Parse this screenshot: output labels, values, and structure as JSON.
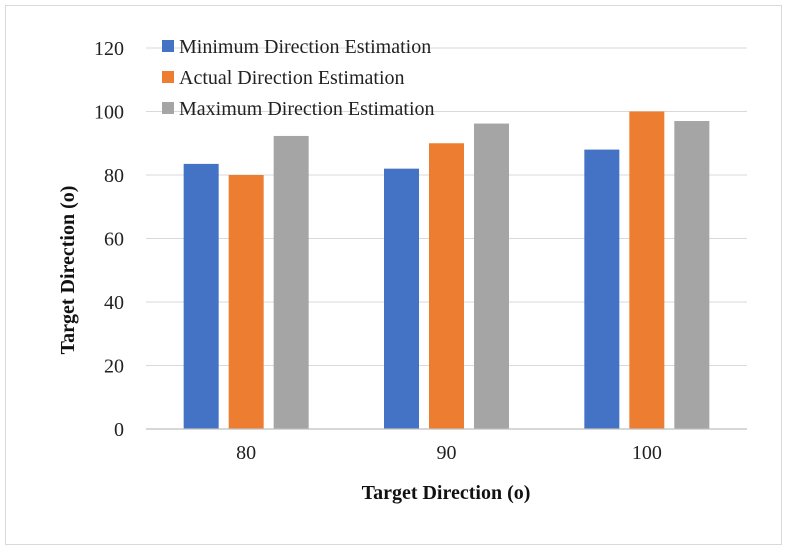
{
  "chart_data": {
    "type": "bar",
    "title": "",
    "xlabel": "Target Direction (o)",
    "ylabel": "Target Direction (o)",
    "categories": [
      "80",
      "90",
      "100"
    ],
    "series": [
      {
        "name": "Minimum Direction Estimation",
        "color": "#4472c4",
        "values": [
          83.5,
          82,
          88
        ]
      },
      {
        "name": "Actual Direction Estimation",
        "color": "#ed7d31",
        "values": [
          80,
          90,
          100
        ]
      },
      {
        "name": "Maximum Direction Estimation",
        "color": "#a5a5a5",
        "values": [
          92.3,
          96.2,
          97
        ]
      }
    ],
    "ylim": [
      0,
      120
    ],
    "yticks": [
      "0",
      "20",
      "40",
      "60",
      "80",
      "100",
      "120"
    ],
    "grid": true,
    "legend_position": "top-left"
  }
}
